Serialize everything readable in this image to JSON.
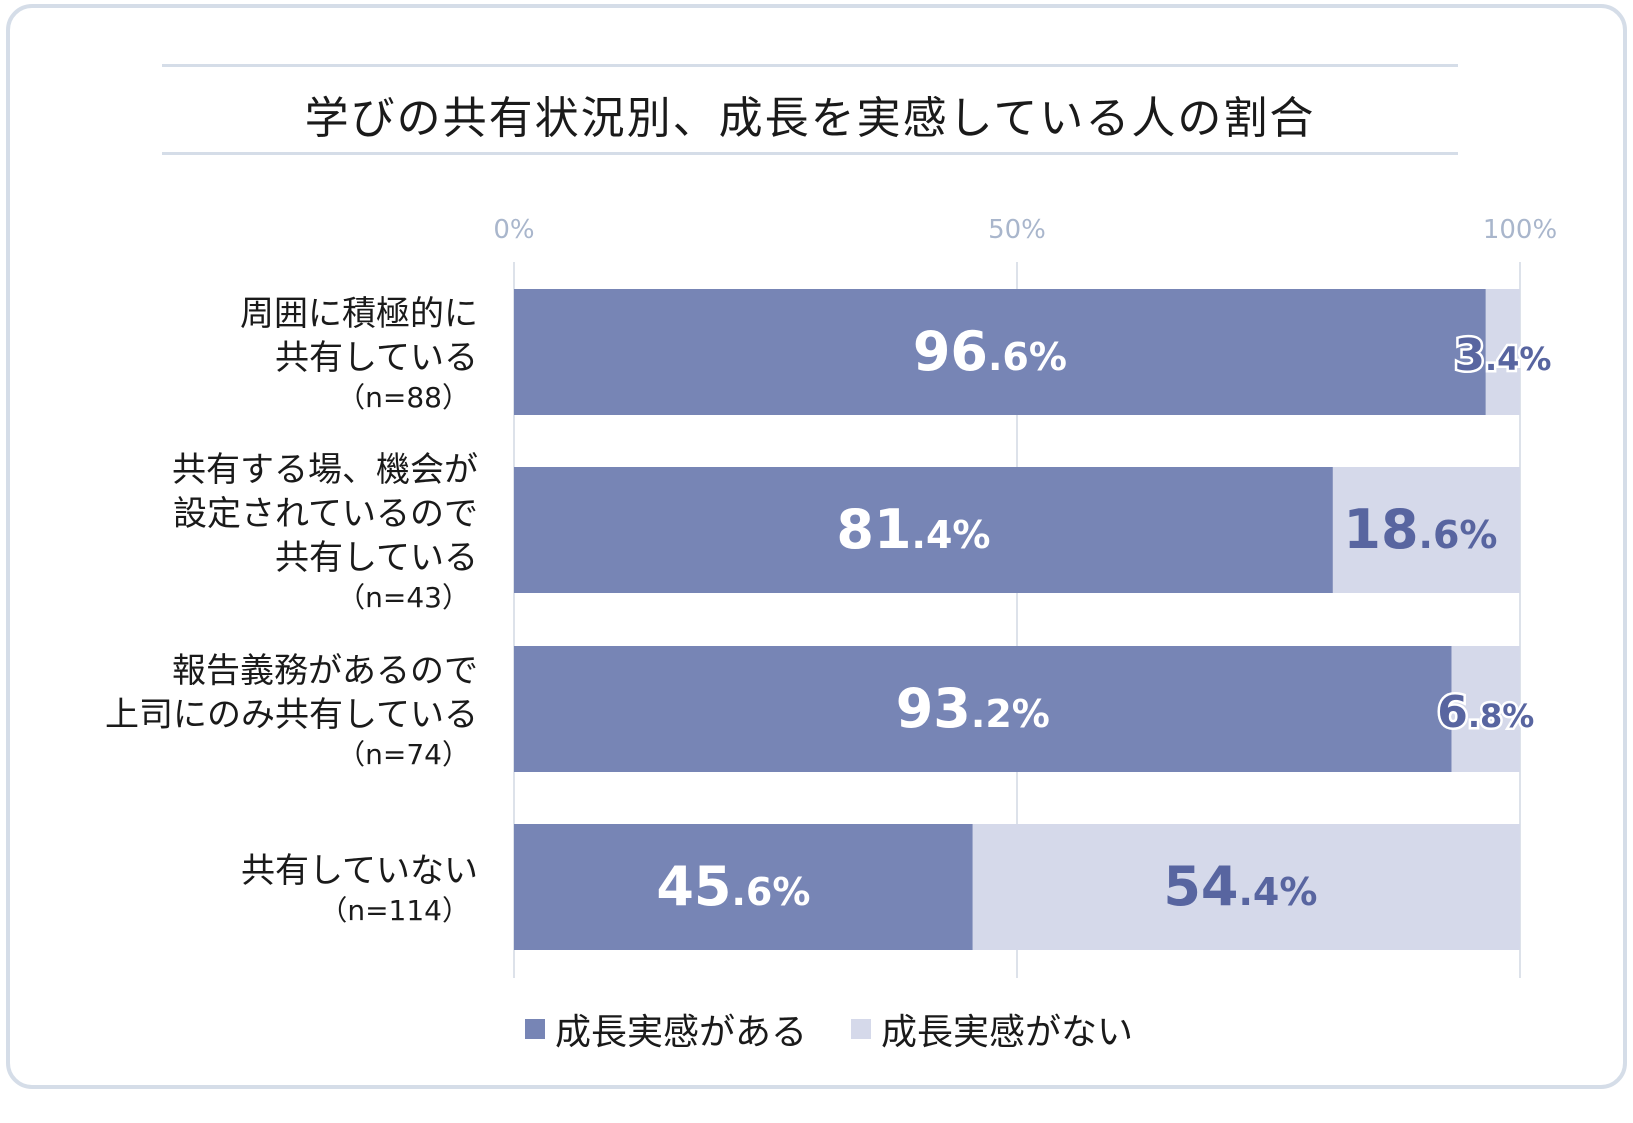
{
  "title": "学びの共有状況別、成長を実感している人の割合",
  "colors": {
    "positive": "#7785b5",
    "negative": "#d5d9ea",
    "grid": "#dde2ea",
    "tick": "#a9b6cc",
    "label_dark": "#5865a0"
  },
  "legend": [
    {
      "label": "成長実感がある",
      "color": "#7785b5"
    },
    {
      "label": "成長実感がない",
      "color": "#d5d9ea"
    }
  ],
  "chart_data": {
    "type": "bar",
    "orientation": "horizontal",
    "stacked": true,
    "percent": true,
    "xlim": [
      0,
      100
    ],
    "ticks": [
      "0%",
      "50%",
      "100%"
    ],
    "categories": [
      {
        "lines": [
          "周囲に積極的に",
          "共有している"
        ],
        "n": "（n=88）"
      },
      {
        "lines": [
          "共有する場、機会が",
          "設定されているので",
          "共有している"
        ],
        "n": "（n=43）"
      },
      {
        "lines": [
          "報告義務があるので",
          "上司にのみ共有している"
        ],
        "n": "（n=74）"
      },
      {
        "lines": [
          "共有していない"
        ],
        "n": "（n=114）"
      }
    ],
    "series": [
      {
        "name": "成長実感がある",
        "values": [
          96.6,
          81.4,
          93.2,
          45.6
        ],
        "labels": [
          [
            "96",
            ".6%"
          ],
          [
            "81",
            ".4%"
          ],
          [
            "93",
            ".2%"
          ],
          [
            "45",
            ".6%"
          ]
        ]
      },
      {
        "name": "成長実感がない",
        "values": [
          3.4,
          18.6,
          6.8,
          54.4
        ],
        "labels": [
          [
            "3",
            ".4%"
          ],
          [
            "18",
            ".6%"
          ],
          [
            "6",
            ".8%"
          ],
          [
            "54",
            ".4%"
          ]
        ]
      }
    ]
  }
}
